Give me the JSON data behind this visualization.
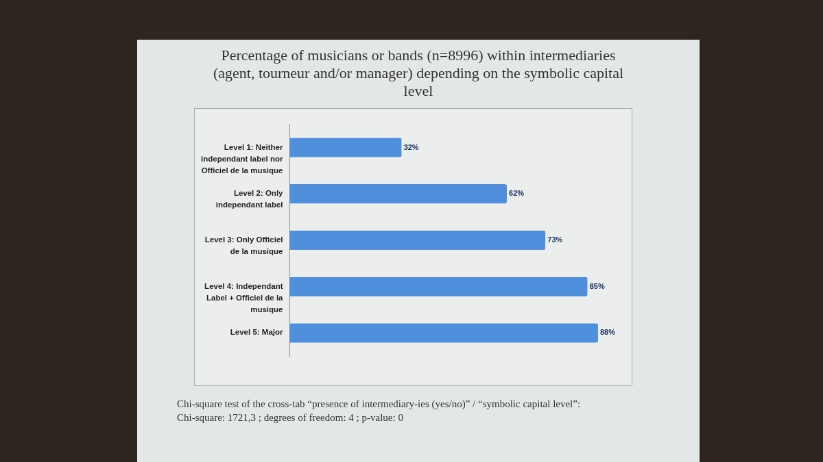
{
  "chart_data": {
    "type": "bar",
    "orientation": "horizontal",
    "title": "Percentage of musicians or bands (n=8996) within intermediaries (agent, tourneur and/or manager) depending on the symbolic capital level",
    "categories": [
      "Level 1: Neither independant label nor Officiel de la musique",
      "Level 2: Only independant label",
      "Level 3: Only Officiel de la musique",
      "Level 4: Independant Label + Officiel de la musique",
      "Level 5: Major"
    ],
    "values": [
      32,
      62,
      73,
      85,
      88
    ],
    "value_labels": [
      "32%",
      "62%",
      "73%",
      "85%",
      "88%"
    ],
    "color": "#4f8fdc",
    "annotations": [
      "Chi-square test of the cross-tab “presence of intermediary-ies (yes/no)” / “symbolic capital level”:",
      "Chi-square: 1721,3 ; degrees of freedom: 4 ; p-value: 0"
    ]
  }
}
